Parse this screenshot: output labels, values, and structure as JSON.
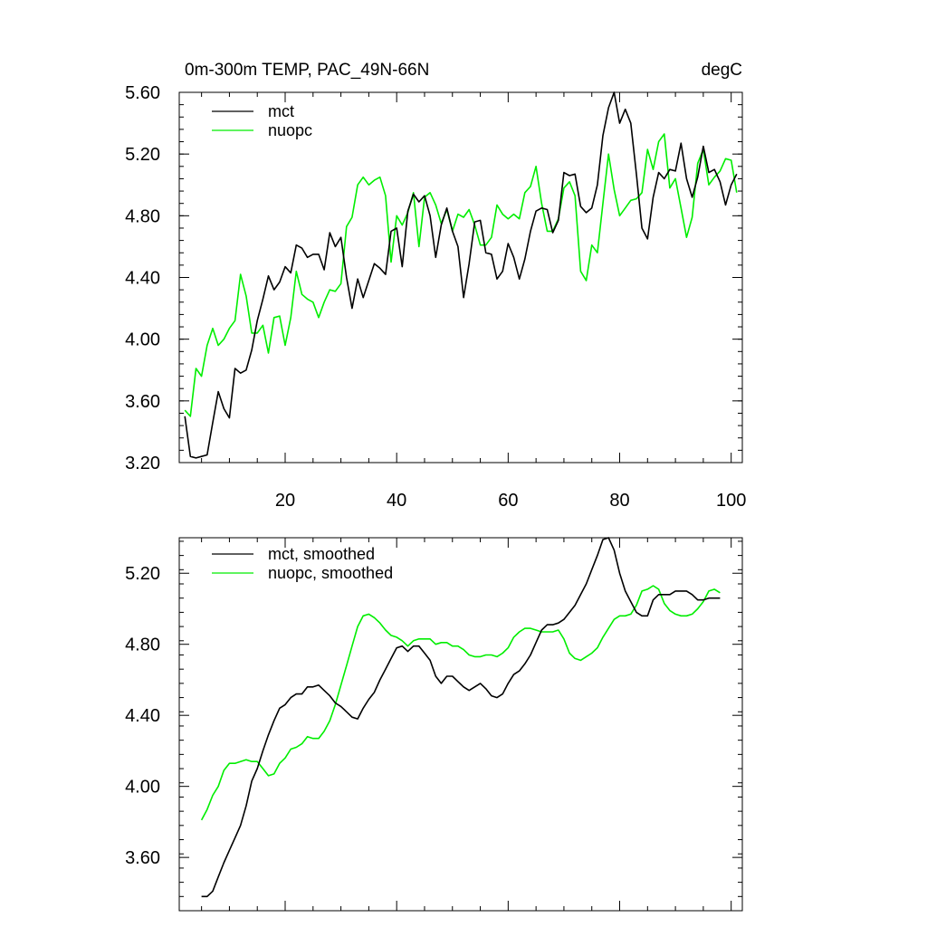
{
  "chart_data": [
    {
      "type": "line",
      "title": "0m-300m TEMP, PAC_49N-66N",
      "units": "degC",
      "xlim": [
        1,
        102
      ],
      "ylim": [
        3.2,
        5.6
      ],
      "xticks": [
        20,
        40,
        60,
        80,
        100
      ],
      "xtick_labels": [
        "20",
        "40",
        "60",
        "80",
        "100"
      ],
      "yticks": [
        3.2,
        3.6,
        4.0,
        4.4,
        4.8,
        5.2,
        5.6
      ],
      "ytick_labels": [
        "3.20",
        "3.60",
        "4.00",
        "4.40",
        "4.80",
        "5.20",
        "5.60"
      ],
      "grid": false,
      "legend_position": "top-left",
      "x": [
        2,
        3,
        4,
        5,
        6,
        7,
        8,
        9,
        10,
        11,
        12,
        13,
        14,
        15,
        16,
        17,
        18,
        19,
        20,
        21,
        22,
        23,
        24,
        25,
        26,
        27,
        28,
        29,
        30,
        31,
        32,
        33,
        34,
        35,
        36,
        37,
        38,
        39,
        40,
        41,
        42,
        43,
        44,
        45,
        46,
        47,
        48,
        49,
        50,
        51,
        52,
        53,
        54,
        55,
        56,
        57,
        58,
        59,
        60,
        61,
        62,
        63,
        64,
        65,
        66,
        67,
        68,
        69,
        70,
        71,
        72,
        73,
        74,
        75,
        76,
        77,
        78,
        79,
        80,
        81,
        82,
        83,
        84,
        85,
        86,
        87,
        88,
        89,
        90,
        91,
        92,
        93,
        94,
        95,
        96,
        97,
        98,
        99,
        100,
        101
      ],
      "series": [
        {
          "name": "mct",
          "color": "#000000",
          "values": [
            3.5,
            3.24,
            3.23,
            3.24,
            3.25,
            3.46,
            3.66,
            3.55,
            3.49,
            3.81,
            3.78,
            3.8,
            3.93,
            4.12,
            4.26,
            4.41,
            4.32,
            4.37,
            4.47,
            4.43,
            4.61,
            4.59,
            4.53,
            4.55,
            4.55,
            4.45,
            4.69,
            4.6,
            4.66,
            4.4,
            4.2,
            4.39,
            4.27,
            4.38,
            4.49,
            4.46,
            4.42,
            4.7,
            4.72,
            4.47,
            4.83,
            4.94,
            4.89,
            4.93,
            4.8,
            4.53,
            4.74,
            4.85,
            4.7,
            4.6,
            4.27,
            4.49,
            4.76,
            4.77,
            4.56,
            4.55,
            4.39,
            4.44,
            4.62,
            4.53,
            4.39,
            4.52,
            4.7,
            4.83,
            4.85,
            4.84,
            4.69,
            4.77,
            5.08,
            5.06,
            5.07,
            4.86,
            4.82,
            4.85,
            5.0,
            5.32,
            5.5,
            5.6,
            5.4,
            5.49,
            5.4,
            5.07,
            4.72,
            4.65,
            4.92,
            5.08,
            5.04,
            5.1,
            5.09,
            5.27,
            5.04,
            4.92,
            5.05,
            5.25,
            5.08,
            5.1,
            5.02,
            4.87,
            5.0,
            5.07
          ]
        },
        {
          "name": "nuopc",
          "color": "#00ee00",
          "values": [
            3.54,
            3.5,
            3.81,
            3.76,
            3.96,
            4.07,
            3.96,
            4.0,
            4.07,
            4.12,
            4.42,
            4.28,
            4.04,
            4.04,
            4.09,
            3.91,
            4.14,
            4.15,
            3.96,
            4.14,
            4.44,
            4.29,
            4.26,
            4.24,
            4.14,
            4.24,
            4.32,
            4.31,
            4.36,
            4.73,
            4.79,
            5.0,
            5.05,
            5.0,
            5.03,
            5.05,
            4.93,
            4.5,
            4.8,
            4.74,
            4.82,
            4.95,
            4.6,
            4.92,
            4.95,
            4.87,
            4.75,
            4.84,
            4.7,
            4.81,
            4.79,
            4.84,
            4.74,
            4.61,
            4.61,
            4.66,
            4.87,
            4.81,
            4.78,
            4.81,
            4.78,
            4.95,
            4.99,
            5.12,
            4.88,
            4.7,
            4.7,
            4.78,
            4.98,
            5.02,
            4.93,
            4.44,
            4.38,
            4.61,
            4.56,
            4.88,
            5.2,
            4.97,
            4.8,
            4.85,
            4.9,
            4.91,
            4.95,
            5.23,
            5.1,
            5.28,
            5.33,
            4.98,
            5.04,
            4.85,
            4.66,
            4.79,
            5.14,
            5.23,
            5.0,
            5.05,
            5.09,
            5.17,
            5.16,
            4.95
          ]
        }
      ]
    },
    {
      "type": "line",
      "title": "",
      "xlim": [
        1,
        102
      ],
      "ylim": [
        3.3,
        5.4
      ],
      "xticks": [
        20,
        40,
        60,
        80,
        100
      ],
      "xtick_labels": [],
      "yticks": [
        3.6,
        4.0,
        4.4,
        4.8,
        5.2
      ],
      "ytick_labels": [
        "3.60",
        "4.00",
        "4.40",
        "4.80",
        "5.20"
      ],
      "grid": false,
      "legend_position": "top-left",
      "x": [
        5,
        6,
        7,
        8,
        9,
        10,
        11,
        12,
        13,
        14,
        15,
        16,
        17,
        18,
        19,
        20,
        21,
        22,
        23,
        24,
        25,
        26,
        27,
        28,
        29,
        30,
        31,
        32,
        33,
        34,
        35,
        36,
        37,
        38,
        39,
        40,
        41,
        42,
        43,
        44,
        45,
        46,
        47,
        48,
        49,
        50,
        51,
        52,
        53,
        54,
        55,
        56,
        57,
        58,
        59,
        60,
        61,
        62,
        63,
        64,
        65,
        66,
        67,
        68,
        69,
        70,
        71,
        72,
        73,
        74,
        75,
        76,
        77,
        78,
        79,
        80,
        81,
        82,
        83,
        84,
        85,
        86,
        87,
        88,
        89,
        90,
        91,
        92,
        93,
        94,
        95,
        96,
        97,
        98
      ],
      "series": [
        {
          "name": "mct, smoothed",
          "color": "#000000",
          "values": [
            3.38,
            3.38,
            3.41,
            3.49,
            3.57,
            3.64,
            3.71,
            3.78,
            3.89,
            4.03,
            4.1,
            4.2,
            4.29,
            4.37,
            4.44,
            4.46,
            4.5,
            4.52,
            4.52,
            4.56,
            4.56,
            4.57,
            4.54,
            4.51,
            4.47,
            4.45,
            4.42,
            4.39,
            4.38,
            4.44,
            4.49,
            4.53,
            4.6,
            4.66,
            4.72,
            4.78,
            4.79,
            4.76,
            4.79,
            4.79,
            4.75,
            4.71,
            4.62,
            4.58,
            4.62,
            4.62,
            4.59,
            4.56,
            4.54,
            4.56,
            4.58,
            4.55,
            4.51,
            4.5,
            4.52,
            4.58,
            4.63,
            4.65,
            4.69,
            4.74,
            4.81,
            4.88,
            4.91,
            4.91,
            4.92,
            4.94,
            4.98,
            5.02,
            5.08,
            5.14,
            5.22,
            5.3,
            5.39,
            5.4,
            5.33,
            5.2,
            5.1,
            5.04,
            4.98,
            4.96,
            4.96,
            5.05,
            5.08,
            5.08,
            5.08,
            5.1,
            5.1,
            5.1,
            5.08,
            5.05,
            5.05,
            5.06,
            5.06,
            5.06
          ]
        },
        {
          "name": "nuopc, smoothed",
          "color": "#00ee00",
          "values": [
            3.81,
            3.87,
            3.95,
            4.0,
            4.09,
            4.13,
            4.13,
            4.14,
            4.15,
            4.14,
            4.14,
            4.1,
            4.06,
            4.07,
            4.13,
            4.16,
            4.21,
            4.22,
            4.24,
            4.28,
            4.27,
            4.27,
            4.31,
            4.37,
            4.46,
            4.57,
            4.68,
            4.79,
            4.9,
            4.96,
            4.97,
            4.95,
            4.92,
            4.88,
            4.85,
            4.84,
            4.82,
            4.79,
            4.82,
            4.83,
            4.83,
            4.83,
            4.8,
            4.81,
            4.81,
            4.79,
            4.79,
            4.77,
            4.74,
            4.73,
            4.73,
            4.74,
            4.74,
            4.73,
            4.75,
            4.78,
            4.84,
            4.87,
            4.89,
            4.89,
            4.88,
            4.87,
            4.87,
            4.87,
            4.88,
            4.83,
            4.75,
            4.72,
            4.71,
            4.73,
            4.75,
            4.78,
            4.84,
            4.89,
            4.94,
            4.96,
            4.96,
            4.97,
            5.02,
            5.1,
            5.11,
            5.13,
            5.11,
            5.03,
            4.99,
            4.97,
            4.96,
            4.96,
            4.97,
            5.0,
            5.04,
            5.1,
            5.11,
            5.09
          ]
        }
      ]
    }
  ]
}
